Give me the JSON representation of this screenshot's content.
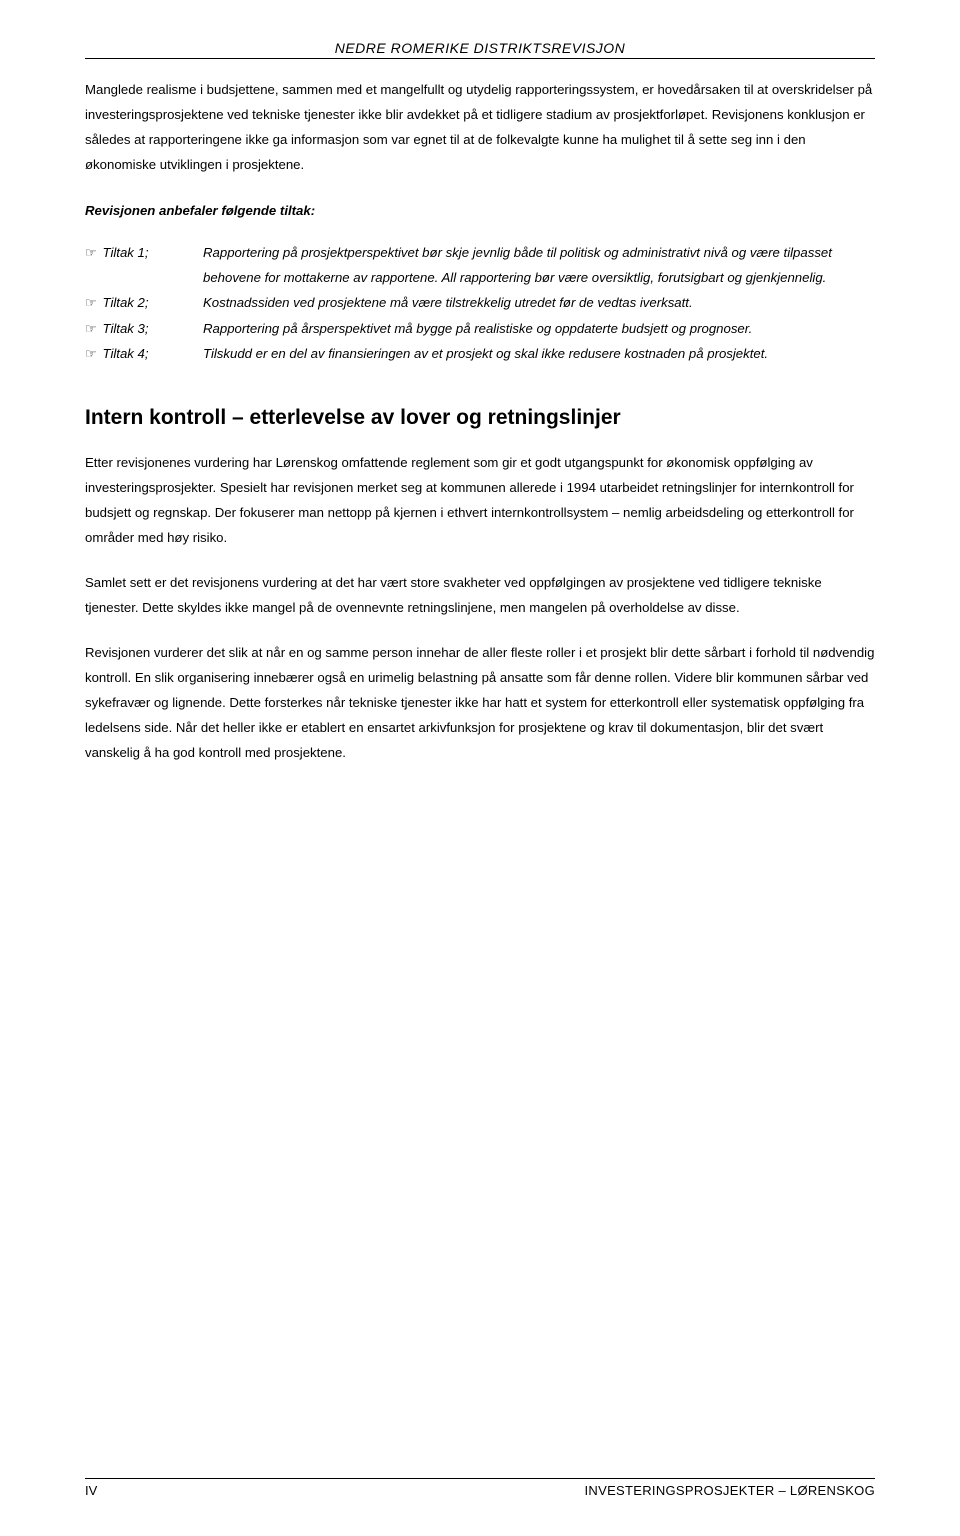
{
  "header": {
    "title": "NEDRE ROMERIKE DISTRIKTSREVISJON"
  },
  "paragraphs": {
    "p1": "Manglede realisme i budsjettene, sammen med et mangelfullt og utydelig rapporteringssystem, er hovedårsaken til at overskridelser på investeringsprosjektene ved tekniske tjenester ikke blir avdekket på et tidligere stadium av prosjektforløpet. Revisjonens konklusjon er således at rapporteringene ikke ga informasjon som var egnet til at de folkevalgte kunne ha mulighet til å sette seg inn i den økonomiske utviklingen i prosjektene.",
    "recommend_heading": "Revisjonen anbefaler følgende tiltak:",
    "section_heading": "Intern kontroll – etterlevelse av lover og retningslinjer",
    "p2": "Etter revisjonenes vurdering har Lørenskog omfattende reglement som gir et godt utgangspunkt for økonomisk oppfølging av investeringsprosjekter. Spesielt har revisjonen merket seg at kommunen allerede i 1994 utarbeidet retningslinjer for internkontroll for budsjett og regnskap. Der fokuserer man nettopp på kjernen i ethvert internkontrollsystem – nemlig arbeidsdeling og etterkontroll for områder med høy risiko.",
    "p3": "Samlet sett er det revisjonens vurdering at det har vært store svakheter ved oppfølgingen av prosjektene ved tidligere tekniske tjenester. Dette skyldes ikke mangel på de ovennevnte retningslinjene, men mangelen på overholdelse av disse.",
    "p4": "Revisjonen vurderer det slik at når en og samme person innehar de aller fleste roller i et prosjekt blir dette sårbart i forhold til nødvendig kontroll. En slik organisering innebærer også en urimelig belastning på ansatte som får denne rollen. Videre blir kommunen sårbar ved sykefravær og lignende. Dette forsterkes når tekniske tjenester ikke har hatt et system for etterkontroll eller systematisk oppfølging fra ledelsens side.  Når det heller ikke er etablert en ensartet arkivfunksjon for prosjektene og krav til dokumentasjon, blir det svært vanskelig å ha god kontroll med prosjektene."
  },
  "tiltak": [
    {
      "label": "Tiltak 1;",
      "text": "Rapportering på prosjektperspektivet bør skje jevnlig både til politisk og administrativt nivå og være tilpasset behovene for mottakerne av rapportene. All rapportering bør være oversiktlig, forutsigbart og gjenkjennelig."
    },
    {
      "label": "Tiltak 2;",
      "text": "Kostnadssiden ved prosjektene må være tilstrekkelig utredet før de vedtas iverksatt."
    },
    {
      "label": "Tiltak 3;",
      "text": "Rapportering på årsperspektivet må bygge på realistiske og oppdaterte budsjett og prognoser."
    },
    {
      "label": "Tiltak 4;",
      "text": "Tilskudd er en del av finansieringen av et prosjekt og skal ikke redusere kostnaden på prosjektet."
    }
  ],
  "footer": {
    "left": "IV",
    "right": "INVESTERINGSPROSJEKTER – LØRENSKOG"
  },
  "glyphs": {
    "pointer": "☞"
  }
}
